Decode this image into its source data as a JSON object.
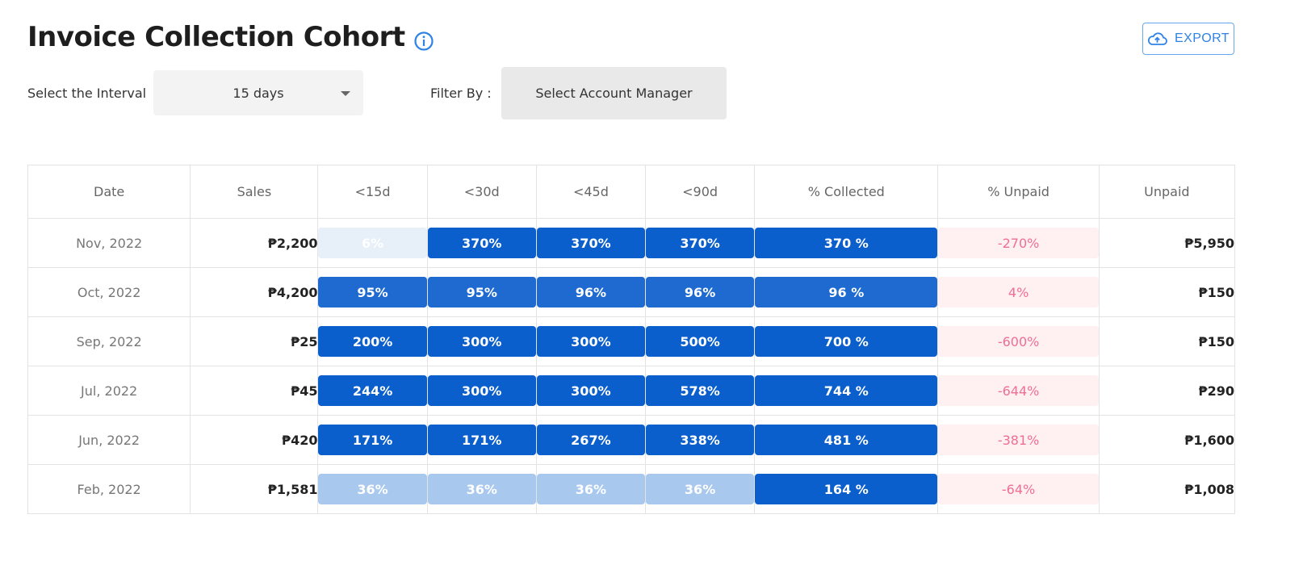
{
  "header": {
    "title": "Invoice Collection Cohort",
    "info_icon": "info-circle-icon",
    "export_label": "EXPORT",
    "export_icon": "cloud-upload-icon"
  },
  "filters": {
    "interval_label": "Select the Interval",
    "interval_value": "15 days",
    "filter_label": "Filter By :",
    "manager_placeholder": "Select Account Manager"
  },
  "colors": {
    "accent": "#2f83e6",
    "pill_dark": "#0b5fcc",
    "pill_mid": "#1e6ad0",
    "pill_light": "#a8c8ee",
    "pill_pale": "#e7eff9",
    "unpaid_bg": "#fff0f1",
    "unpaid_text": "#ef6f93"
  },
  "table": {
    "columns": [
      "Date",
      "Sales",
      "<15d",
      "<30d",
      "<45d",
      "<90d",
      "% Collected",
      "% Unpaid",
      "Unpaid"
    ],
    "rows": [
      {
        "date": "Nov, 2022",
        "sales": "₱2,200",
        "d15": "6%",
        "d30": "370%",
        "d45": "370%",
        "d90": "370%",
        "collected": "370 %",
        "unpaid_pct": "-270%",
        "unpaid": "₱5,950",
        "tones": {
          "d15": "pale",
          "d30": "dark",
          "d45": "dark",
          "d90": "dark",
          "collected": "dark"
        }
      },
      {
        "date": "Oct, 2022",
        "sales": "₱4,200",
        "d15": "95%",
        "d30": "95%",
        "d45": "96%",
        "d90": "96%",
        "collected": "96 %",
        "unpaid_pct": "4%",
        "unpaid": "₱150",
        "tones": {
          "d15": "mid",
          "d30": "mid",
          "d45": "mid",
          "d90": "mid",
          "collected": "mid"
        }
      },
      {
        "date": "Sep, 2022",
        "sales": "₱25",
        "d15": "200%",
        "d30": "300%",
        "d45": "300%",
        "d90": "500%",
        "collected": "700 %",
        "unpaid_pct": "-600%",
        "unpaid": "₱150",
        "tones": {
          "d15": "dark",
          "d30": "dark",
          "d45": "dark",
          "d90": "dark",
          "collected": "dark"
        }
      },
      {
        "date": "Jul, 2022",
        "sales": "₱45",
        "d15": "244%",
        "d30": "300%",
        "d45": "300%",
        "d90": "578%",
        "collected": "744 %",
        "unpaid_pct": "-644%",
        "unpaid": "₱290",
        "tones": {
          "d15": "dark",
          "d30": "dark",
          "d45": "dark",
          "d90": "dark",
          "collected": "dark"
        }
      },
      {
        "date": "Jun, 2022",
        "sales": "₱420",
        "d15": "171%",
        "d30": "171%",
        "d45": "267%",
        "d90": "338%",
        "collected": "481 %",
        "unpaid_pct": "-381%",
        "unpaid": "₱1,600",
        "tones": {
          "d15": "dark",
          "d30": "dark",
          "d45": "dark",
          "d90": "dark",
          "collected": "dark"
        }
      },
      {
        "date": "Feb, 2022",
        "sales": "₱1,581",
        "d15": "36%",
        "d30": "36%",
        "d45": "36%",
        "d90": "36%",
        "collected": "164 %",
        "unpaid_pct": "-64%",
        "unpaid": "₱1,008",
        "tones": {
          "d15": "light",
          "d30": "light",
          "d45": "light",
          "d90": "light",
          "collected": "dark"
        }
      }
    ]
  }
}
